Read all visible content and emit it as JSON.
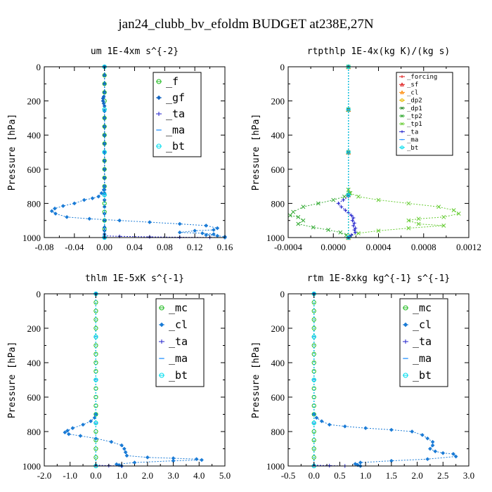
{
  "figure": {
    "title": "jan24_clubb_bv_efoldm  BUDGET at238E,27N"
  },
  "chart_data": [
    {
      "type": "line",
      "title": "um  1E-4xm s^{-2}",
      "ylabel": "Pressure [hPa]",
      "xlim": [
        -0.08,
        0.16
      ],
      "ylim": [
        0,
        1000
      ],
      "y_inverted": true,
      "xticks": [
        "-0.08",
        "-0.04",
        "0.00",
        "0.04",
        "0.08",
        "0.12",
        "0.16"
      ],
      "yticks": [
        "0",
        "200",
        "400",
        "600",
        "800",
        "1000"
      ],
      "legend_position": "top-right",
      "series": [
        {
          "name": "_f",
          "color": "#22bb22",
          "marker": "circle",
          "x": [
            0,
            0,
            0,
            0,
            0,
            0,
            0,
            0,
            0,
            0,
            0,
            0,
            0,
            0,
            0,
            0,
            0,
            0,
            0,
            0,
            0
          ],
          "y": [
            0,
            50,
            100,
            150,
            200,
            250,
            300,
            350,
            400,
            450,
            500,
            550,
            600,
            650,
            700,
            750,
            800,
            850,
            900,
            950,
            1000
          ]
        },
        {
          "name": "_gf",
          "color": "#1565c0",
          "marker": "diamond",
          "x": [
            0,
            0,
            0,
            0,
            -0.001,
            -0.002,
            -0.002,
            -0.001,
            0,
            0,
            0,
            0,
            0,
            0,
            0,
            0,
            0,
            0,
            0,
            0,
            0,
            0,
            0,
            0,
            0,
            0,
            0,
            0,
            0,
            0
          ],
          "y": [
            0,
            50,
            100,
            150,
            175,
            185,
            200,
            215,
            230,
            260,
            300,
            350,
            400,
            450,
            500,
            550,
            600,
            650,
            700,
            720,
            740,
            780,
            820,
            860,
            900,
            940,
            960,
            980,
            995,
            1000
          ]
        },
        {
          "name": "_ta",
          "color": "#2222cc",
          "marker": "plus",
          "x": [
            0,
            0,
            0.02,
            0.06,
            0.1,
            0.14,
            0.16
          ],
          "y": [
            0,
            990,
            993,
            996,
            998,
            999,
            1000
          ]
        },
        {
          "name": "_ma",
          "color": "#3399ff",
          "marker": "dash",
          "x": [
            0,
            0,
            0,
            0,
            0
          ],
          "y": [
            0,
            250,
            500,
            750,
            1000
          ]
        },
        {
          "name": "_bt",
          "color": "#00ddee",
          "marker": "circle",
          "x": [
            0,
            0,
            0,
            0,
            0
          ],
          "y": [
            0,
            250,
            500,
            750,
            1000
          ]
        },
        {
          "name": "",
          "color": "#1a7bd6",
          "marker": "diamond",
          "x": [
            0,
            0,
            -0.001,
            -0.004,
            -0.008,
            -0.016,
            -0.027,
            -0.04,
            -0.055,
            -0.066,
            -0.07,
            -0.065,
            -0.05,
            -0.02,
            0.02,
            0.06,
            0.1,
            0.135,
            0.15,
            0.145,
            0.12,
            0.1,
            0.13,
            0.145,
            0.135,
            0.15,
            0.16,
            0.16
          ],
          "y": [
            0,
            700,
            720,
            740,
            760,
            770,
            780,
            800,
            815,
            830,
            845,
            860,
            880,
            890,
            900,
            910,
            920,
            930,
            945,
            955,
            960,
            970,
            975,
            980,
            985,
            990,
            995,
            1000
          ]
        }
      ]
    },
    {
      "type": "line",
      "title": "rtpthlp  1E-4x(kg K)/(kg s)",
      "ylabel": "Pressure [hPa]",
      "xlim": [
        -0.0006,
        0.0012
      ],
      "ylim": [
        0,
        1000
      ],
      "y_inverted": true,
      "xticks": [
        "-0.0004",
        "0.0000",
        "0.0004",
        "0.0008",
        "0.0012"
      ],
      "yticks": [
        "0",
        "200",
        "400",
        "600",
        "800",
        "1000"
      ],
      "legend_position": "top-right",
      "series": [
        {
          "name": "_forcing",
          "color": "#dd1111",
          "marker": "plus",
          "x": [
            0,
            0,
            0,
            0,
            0
          ],
          "y": [
            0,
            250,
            500,
            750,
            1000
          ]
        },
        {
          "name": "_sf",
          "color": "#dd1111",
          "marker": "triangle",
          "x": [
            0,
            0,
            0,
            0,
            0
          ],
          "y": [
            0,
            250,
            500,
            750,
            1000
          ]
        },
        {
          "name": "_cl",
          "color": "#ff8800",
          "marker": "triangle",
          "x": [
            0,
            0,
            0,
            0,
            0
          ],
          "y": [
            0,
            250,
            500,
            750,
            1000
          ]
        },
        {
          "name": "_dp2",
          "color": "#e6b800",
          "marker": "circle",
          "x": [
            0,
            0,
            0,
            0,
            0
          ],
          "y": [
            0,
            250,
            500,
            750,
            1000
          ]
        },
        {
          "name": "_dp1",
          "color": "#228822",
          "marker": "cross",
          "x": [
            0,
            0,
            0,
            0,
            0
          ],
          "y": [
            0,
            250,
            500,
            750,
            1000
          ]
        },
        {
          "name": "_tp2",
          "color": "#33aa33",
          "marker": "cross",
          "x": [
            0,
            0,
            1e-05,
            -4e-05,
            -0.00015,
            -0.0003,
            -0.00045,
            -0.00055,
            -0.00058,
            -0.0005,
            -0.00045,
            -0.0005,
            -0.00035,
            -0.0002,
            -8e-05,
            -2e-05,
            0
          ],
          "y": [
            0,
            720,
            740,
            760,
            780,
            800,
            820,
            850,
            870,
            880,
            900,
            920,
            940,
            955,
            970,
            985,
            1000
          ]
        },
        {
          "name": "_tp1",
          "color": "#66cc33",
          "marker": "cross",
          "x": [
            0,
            0,
            2e-05,
            0.0001,
            0.0003,
            0.0006,
            0.0009,
            0.00105,
            0.0011,
            0.00095,
            0.0007,
            0.0006,
            0.0007,
            0.00095,
            0.0006,
            0.0003,
            0.0001,
            2e-05,
            0
          ],
          "y": [
            0,
            720,
            740,
            760,
            780,
            800,
            820,
            840,
            860,
            880,
            890,
            900,
            920,
            930,
            945,
            960,
            975,
            990,
            1000
          ]
        },
        {
          "name": "_ta",
          "color": "#2222cc",
          "marker": "plus",
          "x": [
            0,
            0,
            -5e-05,
            -0.0001,
            -7e-05,
            -3e-05,
            0,
            3e-05,
            5e-05,
            4e-05,
            6e-05,
            5e-05,
            7e-05,
            6e-05,
            7e-05,
            3e-05,
            1e-05,
            0
          ],
          "y": [
            0,
            760,
            780,
            800,
            820,
            840,
            855,
            870,
            885,
            900,
            915,
            930,
            945,
            955,
            970,
            985,
            995,
            1000
          ]
        },
        {
          "name": "_ma",
          "color": "#3399ff",
          "marker": "dash",
          "x": [
            0,
            0,
            0,
            0,
            0
          ],
          "y": [
            0,
            250,
            500,
            750,
            1000
          ]
        },
        {
          "name": "_bt",
          "color": "#00ddee",
          "marker": "circle",
          "x": [
            0,
            0,
            0,
            0,
            0
          ],
          "y": [
            0,
            250,
            500,
            750,
            1000
          ]
        }
      ]
    },
    {
      "type": "line",
      "title": "thlm  1E-5xK s^{-1}",
      "ylabel": "Pressure [hPa]",
      "xlim": [
        -2.0,
        5.0
      ],
      "ylim": [
        0,
        1000
      ],
      "y_inverted": true,
      "xticks": [
        "-2.0",
        "-1.0",
        "0.0",
        "1.0",
        "2.0",
        "3.0",
        "4.0",
        "5.0"
      ],
      "yticks": [
        "0",
        "200",
        "400",
        "600",
        "800",
        "1000"
      ],
      "legend_position": "top-right",
      "series": [
        {
          "name": "_mc",
          "color": "#22bb22",
          "marker": "circle",
          "x": [
            0,
            0,
            0,
            0,
            0,
            0,
            0,
            0,
            0,
            0,
            0,
            0,
            0,
            0,
            0,
            0,
            0,
            0,
            0,
            0,
            0
          ],
          "y": [
            0,
            50,
            100,
            150,
            200,
            250,
            300,
            350,
            400,
            450,
            500,
            550,
            600,
            650,
            700,
            750,
            800,
            850,
            900,
            950,
            1000
          ]
        },
        {
          "name": "_cl",
          "color": "#1a7bd6",
          "marker": "diamond",
          "x": [
            0,
            0,
            -0.05,
            -0.2,
            -0.5,
            -0.9,
            -1.1,
            -1.2,
            -1.05,
            -0.6,
            0,
            0.6,
            1.0,
            1.1,
            1.15,
            1.2,
            2.0,
            3.0,
            3.9,
            4.1,
            3.0,
            1.5,
            0.8,
            0.9,
            1.0
          ],
          "y": [
            0,
            700,
            720,
            740,
            760,
            780,
            795,
            805,
            815,
            825,
            840,
            860,
            880,
            900,
            920,
            940,
            950,
            955,
            960,
            965,
            970,
            980,
            990,
            995,
            1000
          ]
        },
        {
          "name": "_ta",
          "color": "#2222cc",
          "marker": "plus",
          "x": [
            0,
            0,
            0.5,
            1.0
          ],
          "y": [
            0,
            995,
            998,
            1000
          ]
        },
        {
          "name": "_ma",
          "color": "#3399ff",
          "marker": "dash",
          "x": [
            0,
            0,
            0,
            0,
            0
          ],
          "y": [
            0,
            250,
            500,
            750,
            1000
          ]
        },
        {
          "name": "_bt",
          "color": "#00ddee",
          "marker": "circle",
          "x": [
            0,
            0,
            0,
            0,
            0
          ],
          "y": [
            0,
            250,
            500,
            750,
            1000
          ]
        }
      ]
    },
    {
      "type": "line",
      "title": "rtm  1E-8xkg kg^{-1} s^{-1}",
      "ylabel": "Pressure [hPa]",
      "xlim": [
        -0.5,
        3.0
      ],
      "ylim": [
        0,
        1000
      ],
      "y_inverted": true,
      "xticks": [
        "-0.5",
        "0.0",
        "0.5",
        "1.0",
        "1.5",
        "2.0",
        "2.5",
        "3.0"
      ],
      "yticks": [
        "0",
        "200",
        "400",
        "600",
        "800",
        "1000"
      ],
      "legend_position": "top-right",
      "series": [
        {
          "name": "_mc",
          "color": "#22bb22",
          "marker": "circle",
          "x": [
            0,
            0,
            0,
            0,
            0,
            0,
            0,
            0,
            0,
            0,
            0,
            0,
            0,
            0,
            0,
            0,
            0,
            0,
            0,
            0,
            0
          ],
          "y": [
            0,
            50,
            100,
            150,
            200,
            250,
            300,
            350,
            400,
            450,
            500,
            550,
            600,
            650,
            700,
            750,
            800,
            850,
            900,
            950,
            1000
          ]
        },
        {
          "name": "_cl",
          "color": "#1a7bd6",
          "marker": "diamond",
          "x": [
            0,
            0,
            0.05,
            0.15,
            0.3,
            0.6,
            1.0,
            1.5,
            1.9,
            2.1,
            2.2,
            2.3,
            2.3,
            2.25,
            2.35,
            2.5,
            2.7,
            2.75,
            2.2,
            1.5,
            0.9,
            0.8,
            0.85,
            0.9
          ],
          "y": [
            0,
            700,
            720,
            740,
            760,
            770,
            780,
            790,
            800,
            820,
            840,
            860,
            880,
            900,
            915,
            925,
            930,
            945,
            960,
            970,
            980,
            988,
            995,
            1000
          ]
        },
        {
          "name": "_ta",
          "color": "#2222cc",
          "marker": "plus",
          "x": [
            0,
            0,
            0.3,
            0.6
          ],
          "y": [
            0,
            995,
            998,
            1000
          ]
        },
        {
          "name": "_ma",
          "color": "#3399ff",
          "marker": "dash",
          "x": [
            0,
            0,
            0,
            0,
            0
          ],
          "y": [
            0,
            250,
            500,
            750,
            1000
          ]
        },
        {
          "name": "_bt",
          "color": "#00ddee",
          "marker": "circle",
          "x": [
            0,
            0,
            0,
            0,
            0
          ],
          "y": [
            0,
            250,
            500,
            750,
            1000
          ]
        }
      ]
    }
  ]
}
